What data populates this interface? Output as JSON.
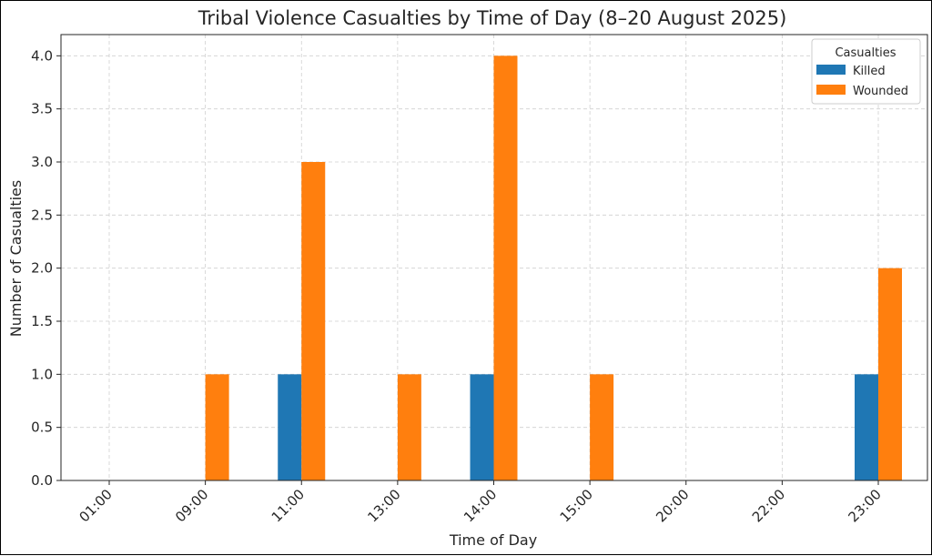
{
  "chart_data": {
    "type": "bar",
    "title": "Tribal Violence Casualties by Time of Day (8–20 August 2025)",
    "xlabel": "Time of Day",
    "ylabel": "Number of Casualties",
    "categories": [
      "01:00",
      "09:00",
      "11:00",
      "13:00",
      "14:00",
      "15:00",
      "20:00",
      "22:00",
      "23:00"
    ],
    "series": [
      {
        "name": "Killed",
        "values": [
          0,
          0,
          1,
          0,
          1,
          0,
          0,
          0,
          1
        ],
        "color": "#1f77b4"
      },
      {
        "name": "Wounded",
        "values": [
          0,
          1,
          3,
          1,
          4,
          1,
          0,
          0,
          2
        ],
        "color": "#ff7f0e"
      }
    ],
    "ylim": [
      0,
      4.2
    ],
    "yticks": [
      "0.0",
      "0.5",
      "1.0",
      "1.5",
      "2.0",
      "2.5",
      "3.0",
      "3.5",
      "4.0"
    ],
    "legend_title": "Casualties",
    "legend_position": "top-right",
    "grid": true
  }
}
